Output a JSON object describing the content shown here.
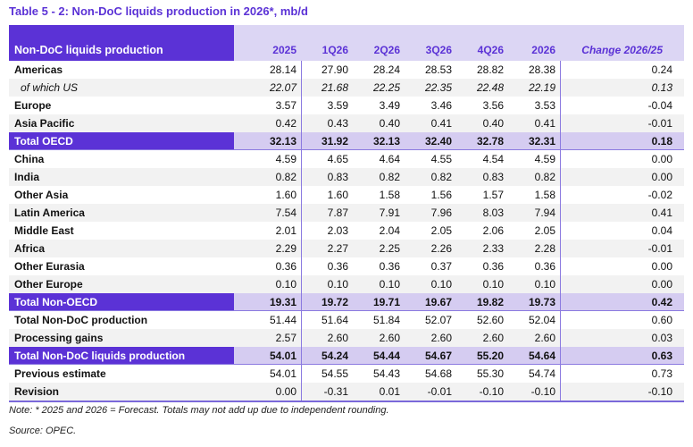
{
  "title": "Table 5 - 2: Non-DoC liquids production in 2026*, mb/d",
  "colors": {
    "brand_purple": "#5b32d6",
    "header_lavender": "#dcd6f4",
    "total_row_lavender": "#d5ccf1",
    "stripe_gray": "#f2f2f2",
    "rule_purple": "#8b7ae0"
  },
  "table": {
    "header_label": "Non-DoC liquids production",
    "columns": [
      "2025",
      "1Q26",
      "2Q26",
      "3Q26",
      "4Q26",
      "2026"
    ],
    "change_label": "Change 2026/25",
    "rows": [
      {
        "label": "Americas",
        "style": "normal",
        "shade": "white",
        "values": [
          "28.14",
          "27.90",
          "28.24",
          "28.53",
          "28.82",
          "28.38",
          "0.24"
        ]
      },
      {
        "label": "of which US",
        "style": "subitem",
        "shade": "gray",
        "values": [
          "22.07",
          "21.68",
          "22.25",
          "22.35",
          "22.48",
          "22.19",
          "0.13"
        ]
      },
      {
        "label": "Europe",
        "style": "normal",
        "shade": "white",
        "values": [
          "3.57",
          "3.59",
          "3.49",
          "3.46",
          "3.56",
          "3.53",
          "-0.04"
        ]
      },
      {
        "label": "Asia Pacific",
        "style": "normal",
        "shade": "gray",
        "values": [
          "0.42",
          "0.43",
          "0.40",
          "0.41",
          "0.40",
          "0.41",
          "-0.01"
        ]
      },
      {
        "label": "Total OECD",
        "style": "total",
        "shade": "total",
        "values": [
          "32.13",
          "31.92",
          "32.13",
          "32.40",
          "32.78",
          "32.31",
          "0.18"
        ]
      },
      {
        "label": "China",
        "style": "normal",
        "shade": "white",
        "values": [
          "4.59",
          "4.65",
          "4.64",
          "4.55",
          "4.54",
          "4.59",
          "0.00"
        ]
      },
      {
        "label": "India",
        "style": "normal",
        "shade": "gray",
        "values": [
          "0.82",
          "0.83",
          "0.82",
          "0.82",
          "0.83",
          "0.82",
          "0.00"
        ]
      },
      {
        "label": "Other Asia",
        "style": "normal",
        "shade": "white",
        "values": [
          "1.60",
          "1.60",
          "1.58",
          "1.56",
          "1.57",
          "1.58",
          "-0.02"
        ]
      },
      {
        "label": "Latin America",
        "style": "normal",
        "shade": "gray",
        "values": [
          "7.54",
          "7.87",
          "7.91",
          "7.96",
          "8.03",
          "7.94",
          "0.41"
        ]
      },
      {
        "label": "Middle East",
        "style": "normal",
        "shade": "white",
        "values": [
          "2.01",
          "2.03",
          "2.04",
          "2.05",
          "2.06",
          "2.05",
          "0.04"
        ]
      },
      {
        "label": "Africa",
        "style": "normal",
        "shade": "gray",
        "values": [
          "2.29",
          "2.27",
          "2.25",
          "2.26",
          "2.33",
          "2.28",
          "-0.01"
        ]
      },
      {
        "label": "Other Eurasia",
        "style": "normal",
        "shade": "white",
        "values": [
          "0.36",
          "0.36",
          "0.36",
          "0.37",
          "0.36",
          "0.36",
          "0.00"
        ]
      },
      {
        "label": "Other Europe",
        "style": "normal",
        "shade": "gray",
        "values": [
          "0.10",
          "0.10",
          "0.10",
          "0.10",
          "0.10",
          "0.10",
          "0.00"
        ]
      },
      {
        "label": "Total Non-OECD",
        "style": "total",
        "shade": "total",
        "values": [
          "19.31",
          "19.72",
          "19.71",
          "19.67",
          "19.82",
          "19.73",
          "0.42"
        ]
      },
      {
        "label": "Total Non-DoC production",
        "style": "normal",
        "shade": "white",
        "values": [
          "51.44",
          "51.64",
          "51.84",
          "52.07",
          "52.60",
          "52.04",
          "0.60"
        ]
      },
      {
        "label": "Processing gains",
        "style": "normal",
        "shade": "gray",
        "values": [
          "2.57",
          "2.60",
          "2.60",
          "2.60",
          "2.60",
          "2.60",
          "0.03"
        ]
      },
      {
        "label": "Total Non-DoC liquids production",
        "style": "total",
        "shade": "total",
        "values": [
          "54.01",
          "54.24",
          "54.44",
          "54.67",
          "55.20",
          "54.64",
          "0.63"
        ]
      },
      {
        "label": "Previous estimate",
        "style": "normal",
        "shade": "white",
        "values": [
          "54.01",
          "54.55",
          "54.43",
          "54.68",
          "55.30",
          "54.74",
          "0.73"
        ]
      },
      {
        "label": "Revision",
        "style": "normal",
        "shade": "gray",
        "values": [
          "0.00",
          "-0.31",
          "0.01",
          "-0.01",
          "-0.10",
          "-0.10",
          "-0.10"
        ]
      }
    ]
  },
  "notes": {
    "note": "Note: * 2025 and 2026 = Forecast. Totals may not add up due to independent rounding.",
    "source": "Source: OPEC."
  }
}
